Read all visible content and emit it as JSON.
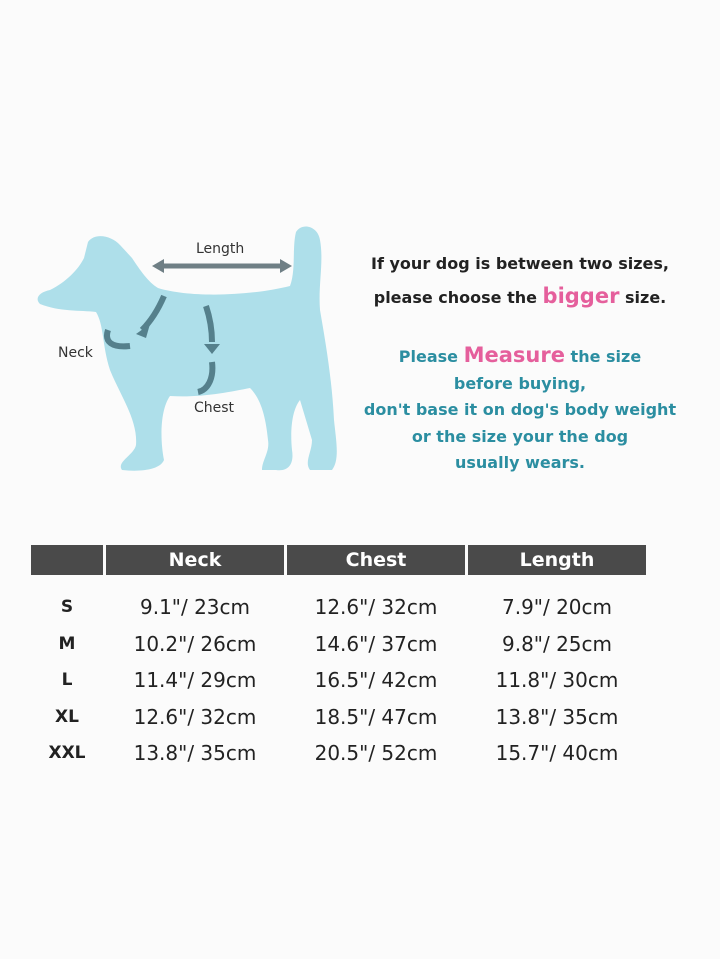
{
  "diagram": {
    "labels": {
      "length": "Length",
      "neck": "Neck",
      "chest": "Chest"
    },
    "colors": {
      "dog": "#aedfea",
      "arrow": "#55808c"
    }
  },
  "notes": {
    "line1": "If your dog is between two sizes,",
    "line2_pre": "please choose the ",
    "line2_highlight": "bigger",
    "line2_post": " size.",
    "line3_pre": "Please ",
    "line3_highlight": "Measure",
    "line3_post": " the size",
    "line4": "before buying,",
    "line5": "don't base it on dog's body weight",
    "line6": "or the size your the dog",
    "line7": "usually wears.",
    "colors": {
      "teal": "#2b8ea1",
      "pink": "#e55f9c"
    }
  },
  "size_table": {
    "headers": [
      "",
      "Neck",
      "Chest",
      "Length"
    ],
    "rows": [
      {
        "size": "S",
        "neck": "9.1\"/ 23cm",
        "chest": "12.6\"/ 32cm",
        "length": "7.9\"/ 20cm"
      },
      {
        "size": "M",
        "neck": "10.2\"/ 26cm",
        "chest": "14.6\"/ 37cm",
        "length": "9.8\"/ 25cm"
      },
      {
        "size": "L",
        "neck": "11.4\"/ 29cm",
        "chest": "16.5\"/ 42cm",
        "length": "11.8\"/ 30cm"
      },
      {
        "size": "XL",
        "neck": "12.6\"/ 32cm",
        "chest": "18.5\"/ 47cm",
        "length": "13.8\"/ 35cm"
      },
      {
        "size": "XXL",
        "neck": "13.8\"/ 35cm",
        "chest": "20.5\"/ 52cm",
        "length": "15.7\"/ 40cm"
      }
    ],
    "header_color": "#4a4a4a"
  }
}
